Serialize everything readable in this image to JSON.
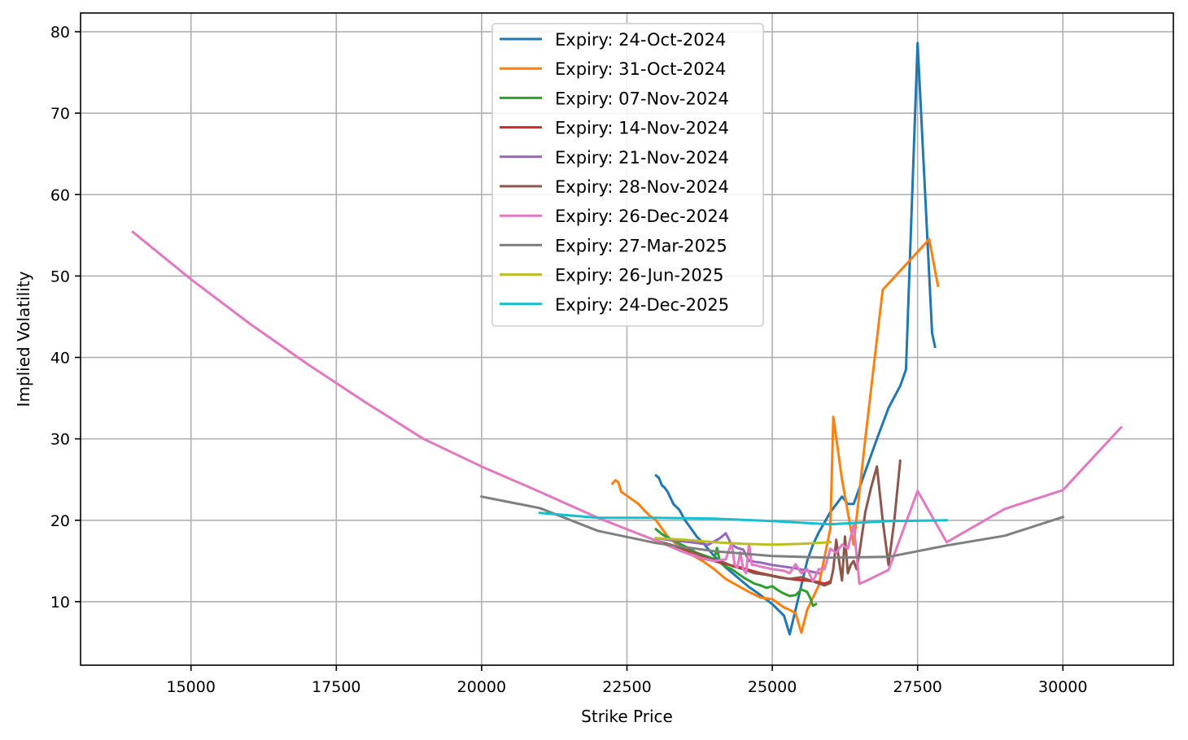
{
  "chart_data": {
    "type": "line",
    "title": "",
    "xlabel": "Strike Price",
    "ylabel": "Implied Volatility",
    "xlim": [
      13100,
      31900
    ],
    "ylim": [
      2.2,
      82.3
    ],
    "xticks": [
      15000,
      17500,
      20000,
      22500,
      25000,
      27500,
      30000
    ],
    "yticks": [
      10,
      20,
      30,
      40,
      50,
      60,
      70,
      80
    ],
    "grid": true,
    "legend_position": "top-center",
    "series": [
      {
        "name": "Expiry: 24-Oct-2024",
        "color": "#1f77b4",
        "x": [
          23000,
          23050,
          23100,
          23150,
          23200,
          23300,
          23400,
          23500,
          23600,
          23700,
          23800,
          24000,
          24200,
          24400,
          24600,
          24800,
          25000,
          25200,
          25300,
          25400,
          25500,
          25600,
          25700,
          25800,
          26000,
          26200,
          26300,
          26400,
          26600,
          26800,
          27000,
          27200,
          27300,
          27500,
          27750,
          27800
        ],
        "y": [
          25.5,
          25.2,
          24.3,
          24.0,
          23.5,
          22.0,
          21.3,
          20.0,
          19.0,
          18.0,
          17.3,
          15.6,
          14.2,
          13.0,
          11.8,
          10.8,
          9.7,
          8.3,
          6.0,
          9.0,
          12.0,
          15.0,
          17.0,
          18.5,
          21.0,
          22.9,
          22.0,
          22.0,
          26.0,
          30.0,
          33.8,
          36.5,
          38.5,
          78.6,
          43.0,
          41.3
        ]
      },
      {
        "name": "Expiry: 31-Oct-2024",
        "color": "#ff7f0e",
        "x": [
          22250,
          22300,
          22350,
          22400,
          22500,
          22600,
          22700,
          22800,
          22900,
          23000,
          23200,
          23400,
          23600,
          23800,
          24000,
          24200,
          24400,
          24600,
          24800,
          25000,
          25200,
          25300,
          25400,
          25500,
          25600,
          25800,
          26000,
          26050,
          26200,
          26400,
          26600,
          26900,
          27700,
          27850
        ],
        "y": [
          24.5,
          24.9,
          24.7,
          23.5,
          23.0,
          22.5,
          22.0,
          21.2,
          20.5,
          20.0,
          18.0,
          16.8,
          15.8,
          15.0,
          14.0,
          12.8,
          12.0,
          11.2,
          10.5,
          10.3,
          9.3,
          9.0,
          8.6,
          6.2,
          9.0,
          12.0,
          19.0,
          32.7,
          25.0,
          17.0,
          30.0,
          48.3,
          54.5,
          48.8
        ]
      },
      {
        "name": "Expiry: 07-Nov-2024",
        "color": "#2ca02c",
        "x": [
          23000,
          23100,
          23300,
          23500,
          23700,
          23900,
          24000,
          24050,
          24100,
          24200,
          24300,
          24400,
          24500,
          24600,
          24700,
          24800,
          24900,
          25000,
          25100,
          25200,
          25300,
          25400,
          25500,
          25600,
          25650,
          25700,
          25750
        ],
        "y": [
          18.9,
          18.3,
          17.5,
          16.8,
          16.0,
          15.5,
          15.2,
          16.6,
          14.8,
          14.3,
          14.0,
          13.5,
          13.0,
          12.6,
          12.2,
          12.0,
          11.7,
          11.9,
          11.4,
          11.0,
          10.7,
          10.8,
          11.5,
          11.2,
          10.5,
          9.5,
          9.7
        ]
      },
      {
        "name": "Expiry: 14-Nov-2024",
        "color": "#d62728",
        "x": [
          23000,
          23200,
          23400,
          23600,
          23800,
          24000,
          24200,
          24400,
          24600,
          24800,
          25000,
          25200,
          25400,
          25600,
          25800,
          25900,
          26000
        ],
        "y": [
          17.5,
          17.0,
          16.3,
          15.8,
          15.3,
          15.0,
          14.6,
          14.3,
          13.9,
          13.5,
          13.2,
          12.9,
          12.7,
          12.6,
          12.4,
          12.2,
          12.5
        ]
      },
      {
        "name": "Expiry: 21-Nov-2024",
        "color": "#9467bd",
        "x": [
          23000,
          23300,
          23600,
          23900,
          24100,
          24200,
          24300,
          24400,
          24500,
          24600,
          24800,
          25000,
          25200,
          25400,
          25600,
          25800
        ],
        "y": [
          17.8,
          17.5,
          17.3,
          17.0,
          17.8,
          18.4,
          17.0,
          16.6,
          16.4,
          15.0,
          14.8,
          14.5,
          14.3,
          14.1,
          13.8,
          13.5
        ]
      },
      {
        "name": "Expiry: 28-Nov-2024",
        "color": "#8c564b",
        "x": [
          23000,
          23300,
          23500,
          23700,
          23900,
          24100,
          24300,
          24500,
          24700,
          24900,
          25100,
          25300,
          25500,
          25700,
          25900,
          26000,
          26050,
          26100,
          26150,
          26200,
          26250,
          26300,
          26350,
          26400,
          26450,
          26500,
          26600,
          26700,
          26800,
          26900,
          27000,
          27100,
          27200
        ],
        "y": [
          17.5,
          16.9,
          16.4,
          15.9,
          15.3,
          15.0,
          14.4,
          14.0,
          13.5,
          13.3,
          13.0,
          12.8,
          13.0,
          12.5,
          12.0,
          12.3,
          14.0,
          17.6,
          15.0,
          12.6,
          18.0,
          13.5,
          14.5,
          15.0,
          14.0,
          16.0,
          21.0,
          24.0,
          26.6,
          20.0,
          14.5,
          20.0,
          27.3
        ]
      },
      {
        "name": "Expiry: 26-Dec-2024",
        "color": "#e377c2",
        "x": [
          14000,
          15000,
          16000,
          17000,
          18000,
          19000,
          20000,
          21000,
          22000,
          23000,
          23400,
          23700,
          24000,
          24200,
          24300,
          24350,
          24400,
          24450,
          24500,
          24550,
          24600,
          24650,
          24700,
          24800,
          25000,
          25200,
          25300,
          25400,
          25500,
          25600,
          25700,
          25800,
          25900,
          26000,
          26100,
          26200,
          26300,
          26400,
          26500,
          26600,
          27000,
          27500,
          28000,
          29000,
          30000,
          31000
        ],
        "y": [
          55.4,
          49.6,
          44.2,
          39.2,
          34.5,
          30.0,
          26.6,
          23.5,
          20.3,
          17.5,
          16.3,
          15.5,
          15.0,
          15.2,
          17.2,
          14.6,
          14.2,
          16.1,
          14.0,
          13.5,
          17.1,
          14.5,
          14.5,
          14.3,
          14.0,
          13.8,
          13.5,
          14.6,
          13.5,
          14.0,
          12.5,
          14.0,
          14.0,
          16.5,
          16.0,
          17.0,
          16.5,
          19.5,
          12.2,
          12.5,
          13.9,
          23.6,
          17.3,
          21.4,
          23.7,
          31.4
        ]
      },
      {
        "name": "Expiry: 27-Mar-2025",
        "color": "#7f7f7f",
        "x": [
          20000,
          21000,
          22000,
          23000,
          24000,
          25000,
          26000,
          27000,
          28000,
          29000,
          30000
        ],
        "y": [
          22.9,
          21.5,
          18.7,
          17.2,
          16.2,
          15.6,
          15.4,
          15.5,
          16.9,
          18.1,
          20.4
        ]
      },
      {
        "name": "Expiry: 26-Jun-2025",
        "color": "#bcbd22",
        "x": [
          23000,
          23500,
          24000,
          24500,
          25000,
          25500,
          26000
        ],
        "y": [
          17.8,
          17.6,
          17.3,
          17.1,
          17.0,
          17.1,
          17.3
        ]
      },
      {
        "name": "Expiry: 24-Dec-2025",
        "color": "#17becf",
        "x": [
          21000,
          22000,
          23000,
          24000,
          25000,
          26000,
          27000,
          28000
        ],
        "y": [
          20.9,
          20.3,
          20.3,
          20.2,
          19.9,
          19.5,
          19.9,
          20.0
        ]
      }
    ]
  }
}
